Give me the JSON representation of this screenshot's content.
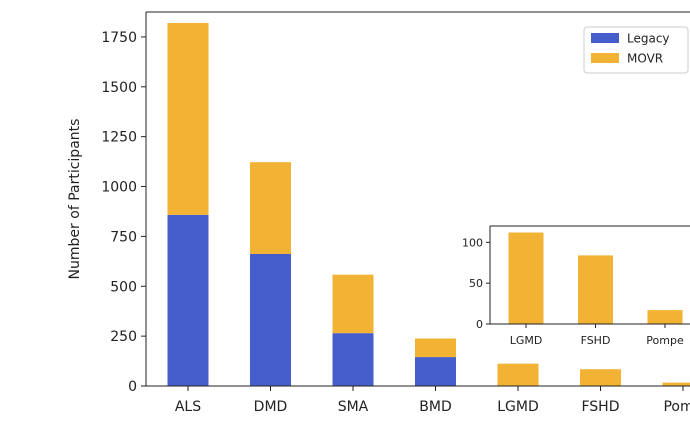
{
  "chart_data": [
    {
      "type": "bar",
      "stacked": true,
      "categories": [
        "ALS",
        "DMD",
        "SMA",
        "BMD",
        "LGMD",
        "FSHD",
        "Pomp"
      ],
      "series": [
        {
          "name": "Legacy",
          "values": [
            858,
            662,
            265,
            145,
            0,
            0,
            0
          ]
        },
        {
          "name": "MOVR",
          "values": [
            962,
            460,
            293,
            93,
            112,
            84,
            17
          ]
        }
      ],
      "title": "",
      "xlabel": "",
      "ylabel": "Number of Participants",
      "ylim": [
        0,
        1875
      ],
      "yticks": [
        0,
        250,
        500,
        750,
        1000,
        1250,
        1500,
        1750
      ],
      "legend": "top-right",
      "grid": false,
      "colors": {
        "Legacy": "#465ecb",
        "MOVR": "#f2b233"
      }
    },
    {
      "type": "bar",
      "role": "inset",
      "categories": [
        "LGMD",
        "FSHD",
        "Pompe"
      ],
      "series": [
        {
          "name": "MOVR",
          "values": [
            112,
            84,
            17
          ]
        }
      ],
      "ylim": [
        0,
        120
      ],
      "yticks": [
        0,
        50,
        100
      ],
      "grid": false,
      "colors": {
        "MOVR": "#f2b233"
      }
    }
  ]
}
